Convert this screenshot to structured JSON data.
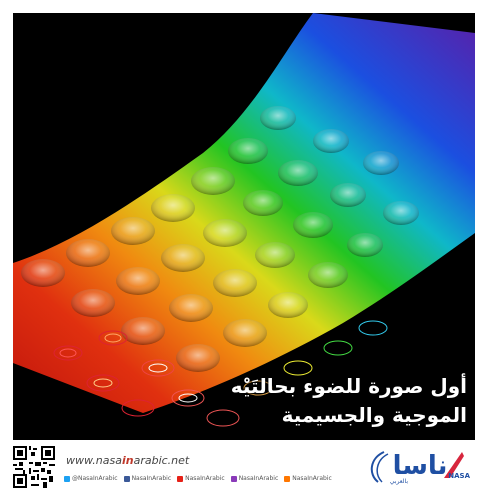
{
  "caption": {
    "line1": "أول صورة للضوء بحالتَيْه",
    "line2": "الموجية والجسيمية"
  },
  "footer": {
    "website_prefix": "www.nasa",
    "website_highlight": "in",
    "website_suffix": "arabic.net",
    "social": [
      {
        "label": "@NasaInArabic",
        "icon": "twitter-icon",
        "color": "#1da1f2"
      },
      {
        "label": "NasaInArabic",
        "icon": "facebook-icon",
        "color": "#3b5998"
      },
      {
        "label": "NasaInArabic",
        "icon": "youtube-icon",
        "color": "#e62117"
      },
      {
        "label": "NasaInArabic",
        "icon": "instagram-icon",
        "color": "#8a3ab9"
      },
      {
        "label": "NasaInArabic",
        "icon": "soundcloud-icon",
        "color": "#ff7700"
      }
    ],
    "logo": {
      "main_text": "ناسا",
      "sub_text": "بالعربي",
      "badge": "NASA"
    }
  },
  "colors": {
    "background": "#ffffff",
    "photo_background": "#000000",
    "caption_text": "#ffffff",
    "logo_blue": "#1f4fa3",
    "logo_red": "#d7263d"
  }
}
